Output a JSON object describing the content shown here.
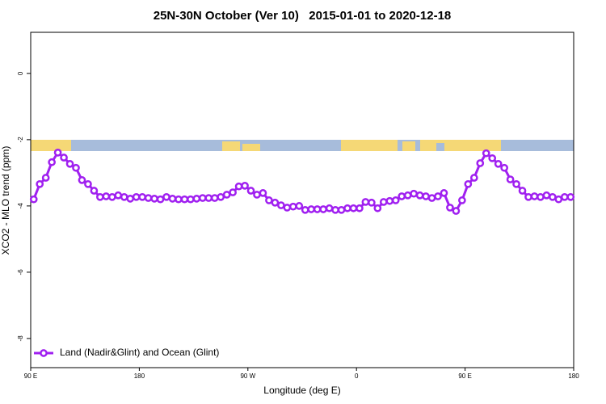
{
  "chart_data": {
    "type": "line",
    "title": "25N-30N October (Ver 10)   2015-01-01 to 2020-12-18",
    "xlabel": "Longitude (deg E)",
    "ylabel": "XCO2 - MLO trend (ppm)",
    "xlim": [
      90,
      540
    ],
    "ylim": [
      -8.88,
      1.24
    ],
    "xticks": [
      {
        "value": 90,
        "label": "90 E"
      },
      180,
      {
        "value": 270,
        "label": "90 W"
      },
      {
        "value": 360,
        "label": "0"
      },
      {
        "value": 450,
        "label": "90 E"
      },
      {
        "value": 540,
        "label": "180"
      }
    ],
    "yticks": [
      0,
      -2,
      -4,
      -6,
      -8
    ],
    "legend": "bottom-left",
    "x": [
      92.5,
      97.5,
      102.5,
      107.5,
      112.5,
      117.5,
      122.5,
      127.5,
      132.5,
      137.5,
      142.5,
      147.5,
      152.5,
      157.5,
      162.5,
      167.5,
      172.5,
      177.5,
      182.5,
      187.5,
      192.5,
      197.5,
      202.5,
      207.5,
      212.5,
      217.5,
      222.5,
      227.5,
      232.5,
      237.5,
      242.5,
      247.5,
      252.5,
      257.5,
      262.5,
      267.5,
      272.5,
      277.5,
      282.5,
      287.5,
      292.5,
      297.5,
      302.5,
      307.5,
      312.5,
      317.5,
      322.5,
      327.5,
      332.5,
      337.5,
      342.5,
      347.5,
      352.5,
      357.5,
      362.5,
      367.5,
      372.5,
      377.5,
      382.5,
      387.5,
      392.5,
      397.5,
      402.5,
      407.5,
      412.5,
      417.5,
      422.5,
      427.5,
      432.5,
      437.5,
      442.5,
      447.5,
      452.5,
      457.5,
      462.5,
      467.5,
      472.5,
      477.5,
      482.5,
      487.5,
      492.5,
      497.5,
      502.5,
      507.5,
      512.5,
      517.5,
      522.5,
      527.5,
      532.5,
      537.5
    ],
    "series": [
      {
        "name": "Land (Nadir&Glint) and Ocean (Glint)",
        "color": "#a020f0",
        "values": [
          -3.8,
          -3.34,
          -3.15,
          -2.68,
          -2.39,
          -2.54,
          -2.73,
          -2.85,
          -3.22,
          -3.34,
          -3.54,
          -3.73,
          -3.71,
          -3.73,
          -3.68,
          -3.73,
          -3.78,
          -3.73,
          -3.73,
          -3.76,
          -3.78,
          -3.8,
          -3.73,
          -3.78,
          -3.8,
          -3.8,
          -3.8,
          -3.78,
          -3.76,
          -3.76,
          -3.76,
          -3.73,
          -3.66,
          -3.59,
          -3.41,
          -3.39,
          -3.54,
          -3.66,
          -3.61,
          -3.83,
          -3.9,
          -3.98,
          -4.05,
          -4.02,
          -4.0,
          -4.12,
          -4.1,
          -4.1,
          -4.1,
          -4.07,
          -4.12,
          -4.12,
          -4.07,
          -4.07,
          -4.07,
          -3.88,
          -3.9,
          -4.07,
          -3.88,
          -3.85,
          -3.83,
          -3.71,
          -3.68,
          -3.63,
          -3.68,
          -3.71,
          -3.76,
          -3.71,
          -3.61,
          -4.05,
          -4.15,
          -3.83,
          -3.34,
          -3.15,
          -2.71,
          -2.41,
          -2.56,
          -2.73,
          -2.85,
          -3.2,
          -3.34,
          -3.54,
          -3.73,
          -3.71,
          -3.73,
          -3.68,
          -3.73,
          -3.8,
          -3.73,
          -3.73
        ]
      }
    ]
  }
}
